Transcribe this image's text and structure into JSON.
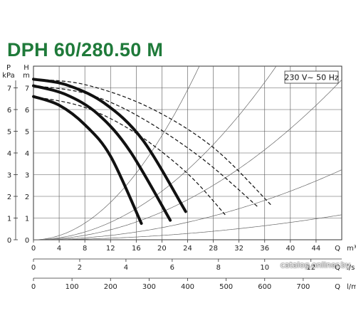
{
  "title": "DPH 60/280.50 M",
  "watermark": "catalog.onliner.by",
  "chart_data": {
    "type": "line",
    "title": "DPH 60/280.50 M",
    "legend_box": "230 V~ 50 Hz",
    "y_left_labels": {
      "p_symbol": "P",
      "p_unit": "kPa",
      "h_symbol": "H",
      "h_unit": "m"
    },
    "ylim": [
      0,
      8
    ],
    "y_ticks": [
      0,
      1,
      2,
      3,
      4,
      5,
      6,
      7
    ],
    "x_axes": [
      {
        "name": "Q",
        "unit": "m³/h",
        "range": [
          0,
          48
        ],
        "ticks": [
          0,
          4,
          8,
          12,
          16,
          20,
          24,
          28,
          32,
          36,
          40,
          44
        ]
      },
      {
        "name": "Q",
        "unit": "l/s",
        "range": [
          0,
          13.333
        ],
        "ticks": [
          0,
          2,
          4,
          6,
          8,
          10,
          12
        ]
      },
      {
        "name": "Q",
        "unit": "l/min",
        "range": [
          0,
          800
        ],
        "ticks": [
          0,
          100,
          200,
          300,
          400,
          500,
          600,
          700
        ]
      }
    ],
    "series": [
      {
        "style": "solid",
        "points": [
          [
            0,
            6.6
          ],
          [
            4,
            6.2
          ],
          [
            8,
            5.3
          ],
          [
            12,
            3.85
          ],
          [
            16.8,
            0.75
          ]
        ]
      },
      {
        "style": "solid",
        "points": [
          [
            0,
            7.1
          ],
          [
            5,
            6.7
          ],
          [
            10,
            5.8
          ],
          [
            15,
            4.1
          ],
          [
            21.3,
            0.9
          ]
        ]
      },
      {
        "style": "solid",
        "points": [
          [
            0,
            7.4
          ],
          [
            5,
            7.15
          ],
          [
            11,
            6.3
          ],
          [
            17,
            4.6
          ],
          [
            23.7,
            1.3
          ]
        ]
      },
      {
        "style": "dashed",
        "points": [
          [
            0,
            6.6
          ],
          [
            8,
            6.1
          ],
          [
            16,
            4.9
          ],
          [
            24,
            3.05
          ],
          [
            30,
            1.1
          ]
        ]
      },
      {
        "style": "dashed",
        "points": [
          [
            0,
            7.1
          ],
          [
            8,
            6.75
          ],
          [
            16,
            5.75
          ],
          [
            26,
            3.8
          ],
          [
            35,
            1.5
          ]
        ]
      },
      {
        "style": "dashed",
        "points": [
          [
            0,
            7.4
          ],
          [
            8,
            7.15
          ],
          [
            18,
            6.1
          ],
          [
            28,
            4.25
          ],
          [
            37,
            1.6
          ]
        ]
      }
    ],
    "system_curves_k": [
      0.012,
      0.0056,
      0.0032,
      0.0014,
      0.0005
    ],
    "grid": true
  }
}
